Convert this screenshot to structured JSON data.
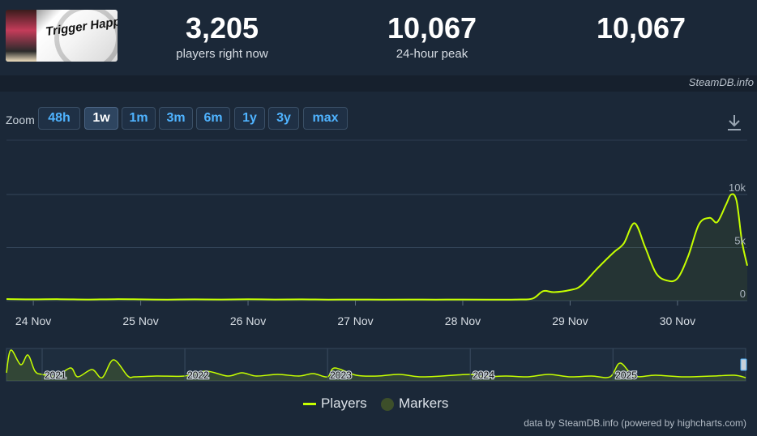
{
  "header": {
    "logo_name": "Trigger Happy Havoc",
    "stats": [
      {
        "value": "3,205",
        "label": "players right now"
      },
      {
        "value": "10,067",
        "label": "24-hour peak"
      },
      {
        "value": "10,067",
        "label": ""
      }
    ],
    "credit": "SteamDB.info"
  },
  "zoom": {
    "label": "Zoom",
    "buttons": [
      "48h",
      "1w",
      "1m",
      "3m",
      "6m",
      "1y",
      "3y",
      "max"
    ],
    "active": "1w"
  },
  "colors": {
    "line": "#c6ff00",
    "marker": "#3d4f2a",
    "background": "#1b2838"
  },
  "legend": {
    "players": "Players",
    "markers": "Markers"
  },
  "credits": "data by SteamDB.info (powered by highcharts.com)",
  "chart_data": {
    "type": "line",
    "title": "",
    "xlabel": "",
    "ylabel": "",
    "ylim": [
      0,
      10000
    ],
    "xlim": [
      0,
      6.9
    ],
    "grid": true,
    "legend_position": "bottom-center",
    "x_ticks": [
      {
        "x": 0.25,
        "label": "24 Nov"
      },
      {
        "x": 1.25,
        "label": "25 Nov"
      },
      {
        "x": 2.25,
        "label": "26 Nov"
      },
      {
        "x": 3.25,
        "label": "27 Nov"
      },
      {
        "x": 4.25,
        "label": "28 Nov"
      },
      {
        "x": 5.25,
        "label": "29 Nov"
      },
      {
        "x": 6.25,
        "label": "30 Nov"
      }
    ],
    "y_ticks": [
      {
        "y": 0,
        "label": "0"
      },
      {
        "y": 5000,
        "label": "5k"
      },
      {
        "y": 10000,
        "label": "10k"
      }
    ],
    "series": [
      {
        "name": "Players",
        "x": [
          0,
          0.25,
          0.5,
          0.75,
          1.0,
          1.25,
          1.5,
          1.75,
          2.0,
          2.25,
          2.5,
          2.75,
          3.0,
          3.25,
          3.5,
          3.75,
          4.0,
          4.25,
          4.5,
          4.75,
          4.9,
          5.0,
          5.1,
          5.25,
          5.35,
          5.5,
          5.65,
          5.75,
          5.85,
          5.95,
          6.05,
          6.15,
          6.25,
          6.35,
          6.45,
          6.55,
          6.62,
          6.7,
          6.75,
          6.8,
          6.85,
          6.9
        ],
        "y": [
          150,
          120,
          140,
          110,
          140,
          120,
          100,
          120,
          110,
          130,
          110,
          120,
          100,
          110,
          100,
          110,
          100,
          110,
          90,
          110,
          200,
          900,
          800,
          1000,
          1400,
          3000,
          4500,
          5400,
          7300,
          5000,
          2600,
          1900,
          2100,
          4200,
          7200,
          7800,
          7400,
          9000,
          10000,
          9400,
          5600,
          3300
        ]
      }
    ],
    "navigator": {
      "x_ticks": [
        {
          "x": 2021,
          "label": "2021"
        },
        {
          "x": 2022,
          "label": "2022"
        },
        {
          "x": 2023,
          "label": "2023"
        },
        {
          "x": 2024,
          "label": "2024"
        },
        {
          "x": 2025,
          "label": "2025"
        }
      ],
      "xlim": [
        2020.75,
        2025.93
      ],
      "x": [
        2020.75,
        2020.78,
        2020.85,
        2020.9,
        2020.95,
        2021.0,
        2021.1,
        2021.2,
        2021.25,
        2021.35,
        2021.42,
        2021.5,
        2021.6,
        2021.65,
        2021.8,
        2022.0,
        2022.15,
        2022.3,
        2022.4,
        2022.5,
        2022.65,
        2022.8,
        2022.9,
        2023.0,
        2023.05,
        2023.2,
        2023.35,
        2023.5,
        2023.65,
        2023.8,
        2024.0,
        2024.1,
        2024.25,
        2024.4,
        2024.55,
        2024.7,
        2024.85,
        2024.98,
        2025.05,
        2025.15,
        2025.3,
        2025.5,
        2025.7,
        2025.85,
        2025.93
      ],
      "y": [
        10,
        38,
        20,
        32,
        12,
        8,
        6,
        16,
        5,
        14,
        4,
        26,
        6,
        5,
        6,
        6,
        12,
        6,
        10,
        6,
        8,
        6,
        9,
        5,
        16,
        7,
        6,
        8,
        5,
        6,
        8,
        5,
        6,
        5,
        8,
        5,
        6,
        5,
        22,
        6,
        7,
        5,
        6,
        7,
        4
      ]
    }
  }
}
